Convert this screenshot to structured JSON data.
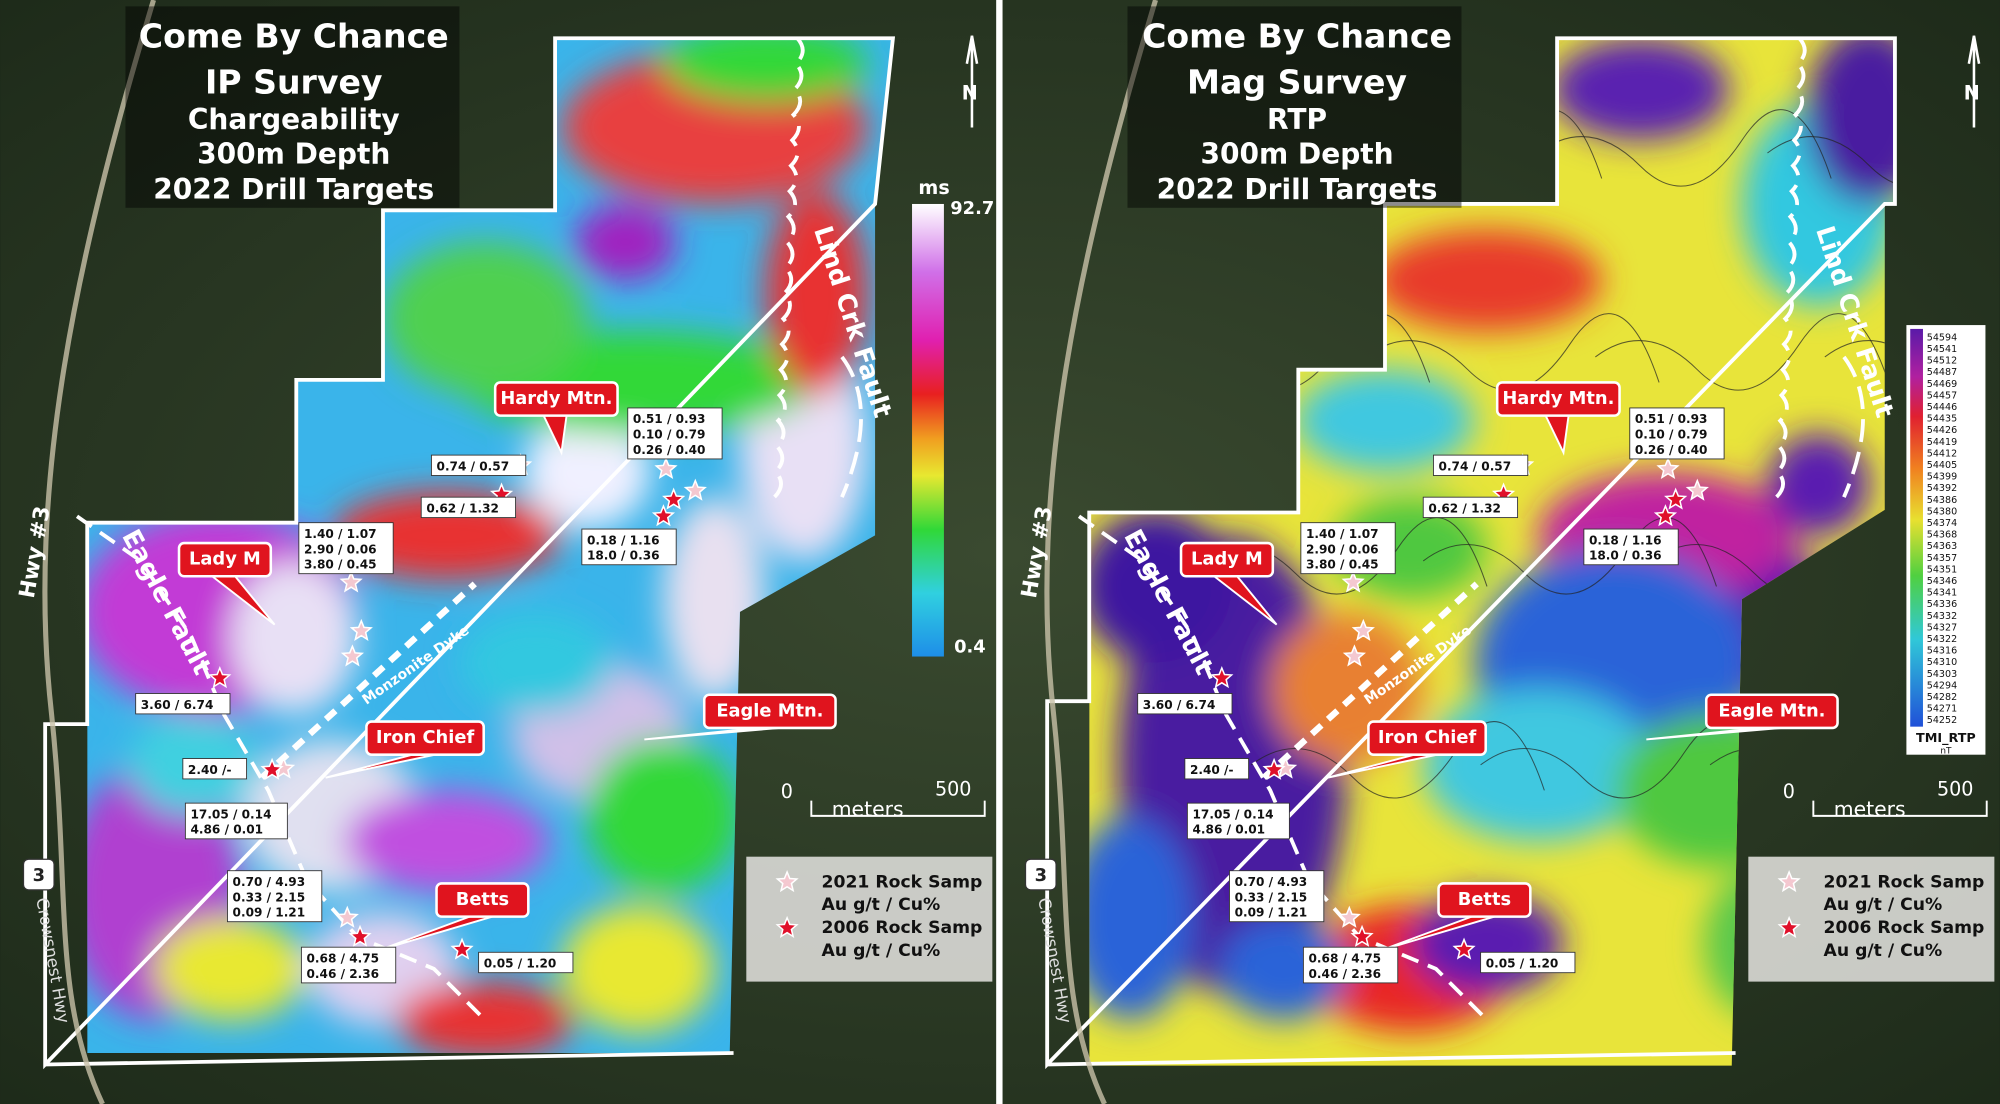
{
  "panels": [
    {
      "title": [
        "Come By Chance",
        "IP Survey",
        "Chargeability",
        "300m Depth",
        "2022 Drill Targets"
      ],
      "callouts": [
        "Hardy Mtn.",
        "Lady M",
        "Iron Chief",
        "Eagle Mtn.",
        "Betts"
      ],
      "assays": [
        [
          "0.74 / 0.57"
        ],
        [
          "0.62 / 1.32"
        ],
        [
          "1.40 / 1.07",
          "2.90 / 0.06",
          "3.80 / 0.45"
        ],
        [
          "0.51 / 0.93",
          "0.10 / 0.79",
          "0.26 / 0.40"
        ],
        [
          "0.18 / 1.16",
          "18.0 / 0.36"
        ],
        [
          "3.60 / 6.74"
        ],
        [
          "2.40 /-"
        ],
        [
          "17.05 / 0.14",
          "4.86 / 0.01"
        ],
        [
          "0.70 / 4.93",
          "0.33 / 2.15",
          "0.09 / 1.21"
        ],
        [
          "0.68 / 4.75",
          "0.46 / 2.36"
        ],
        [
          "0.05 / 1.20"
        ]
      ],
      "faults": [
        "Lind Crk Fault",
        "Eagle Fault"
      ],
      "dyke": "Monzonite Dyke",
      "highway": "Hwy #3",
      "road": "Crowsnest Hwy",
      "shield": "3",
      "north": "N",
      "scale": {
        "start": "0",
        "end": "500",
        "unit": "meters"
      },
      "legend": [
        {
          "label": "2021 Rock Samp",
          "sub": "Au g/t / Cu%"
        },
        {
          "label": "2006 Rock Samp",
          "sub": "Au g/t / Cu%"
        }
      ],
      "colorbar": {
        "unit": "ms",
        "max": "92.7",
        "min": "0.4"
      }
    },
    {
      "title": [
        "Come By Chance",
        "Mag Survey",
        "RTP",
        "300m Depth",
        "2022 Drill Targets"
      ],
      "callouts": [
        "Hardy Mtn.",
        "Lady M",
        "Iron Chief",
        "Eagle Mtn.",
        "Betts"
      ],
      "assays": [
        [
          "0.74 / 0.57"
        ],
        [
          "0.62 / 1.32"
        ],
        [
          "1.40 / 1.07",
          "2.90 / 0.06",
          "3.80 / 0.45"
        ],
        [
          "0.51 / 0.93",
          "0.10 / 0.79",
          "0.26 / 0.40"
        ],
        [
          "0.18 / 1.16",
          "18.0 / 0.36"
        ],
        [
          "3.60 / 6.74"
        ],
        [
          "2.40 /-"
        ],
        [
          "17.05 / 0.14",
          "4.86 / 0.01"
        ],
        [
          "0.70 / 4.93",
          "0.33 / 2.15",
          "0.09 / 1.21"
        ],
        [
          "0.68 / 4.75",
          "0.46 / 2.36"
        ],
        [
          "0.05 / 1.20"
        ]
      ],
      "faults": [
        "Lind Crk Fault",
        "Eagle Fault"
      ],
      "dyke": "Monzonite Dyke",
      "highway": "Hwy #3",
      "road": "Crowsnest Hwy",
      "shield": "3",
      "north": "N",
      "scale": {
        "start": "0",
        "end": "500",
        "unit": "meters"
      },
      "legend": [
        {
          "label": "2021 Rock Samp",
          "sub": "Au g/t / Cu%"
        },
        {
          "label": "2006 Rock Samp",
          "sub": "Au g/t / Cu%"
        }
      ],
      "colorbar": {
        "ticks": [
          "54594",
          "54541",
          "54512",
          "54487",
          "54469",
          "54457",
          "54446",
          "54435",
          "54426",
          "54419",
          "54412",
          "54405",
          "54399",
          "54392",
          "54386",
          "54380",
          "54374",
          "54368",
          "54363",
          "54357",
          "54351",
          "54346",
          "54341",
          "54336",
          "54332",
          "54327",
          "54322",
          "54316",
          "54310",
          "54303",
          "54294",
          "54282",
          "54271",
          "54252"
        ],
        "name": "TMI_RTP",
        "unit": "nT"
      }
    }
  ]
}
